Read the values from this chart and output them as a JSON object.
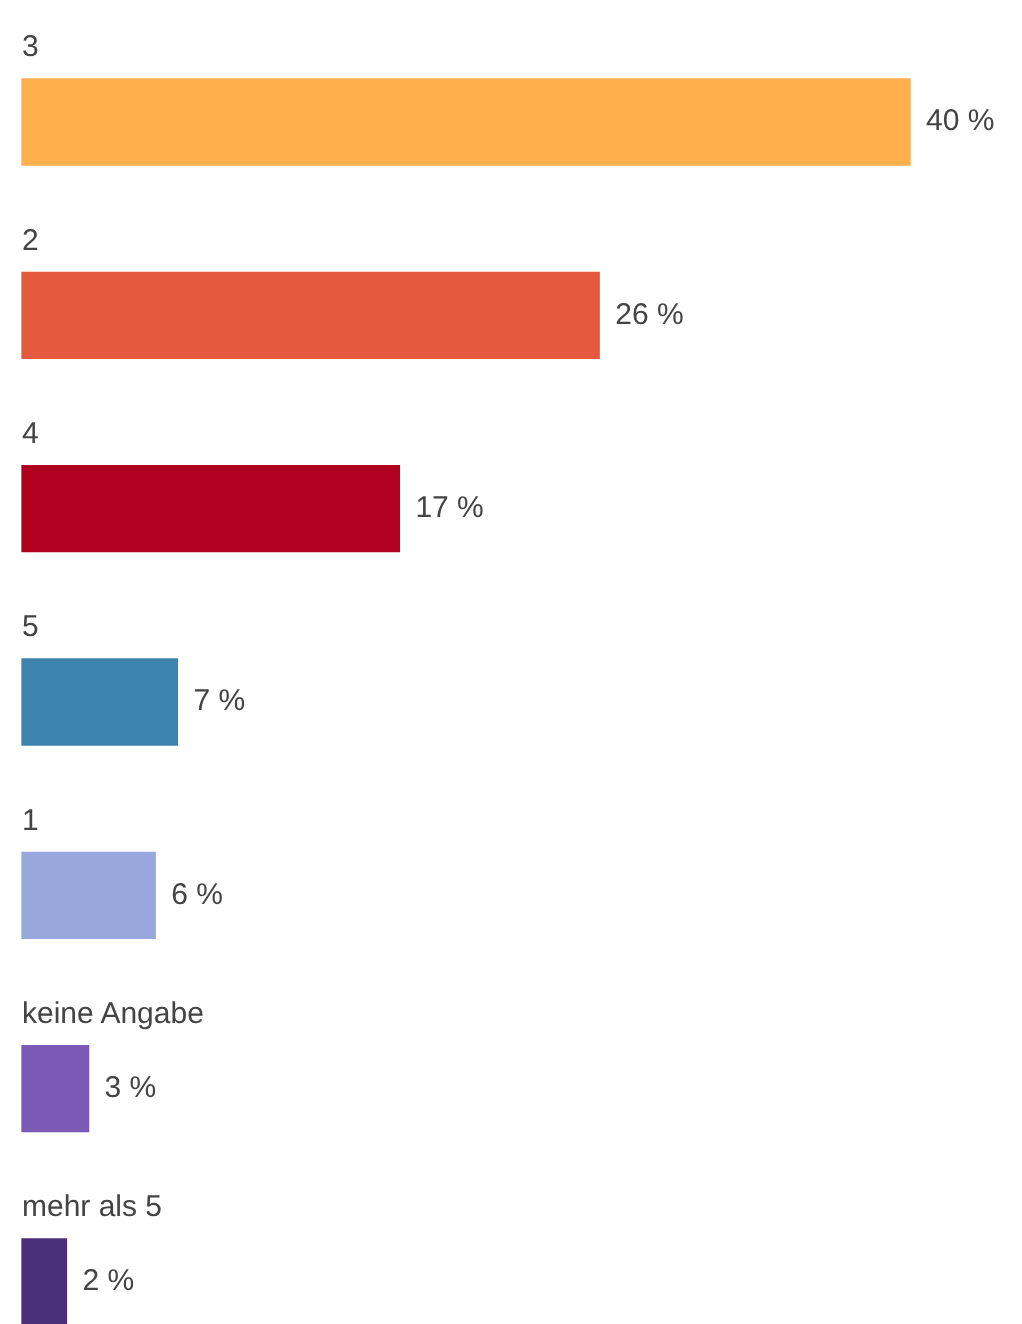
{
  "chart_data": {
    "type": "bar",
    "orientation": "horizontal",
    "categories": [
      "3",
      "2",
      "4",
      "5",
      "1",
      "keine Angabe",
      "mehr als 5"
    ],
    "values": [
      40,
      26,
      17,
      7,
      6,
      3,
      2
    ],
    "colors": [
      "#ffb04d",
      "#e55a3f",
      "#b00020",
      "#3d85b0",
      "#98a8dc",
      "#7a5ab4",
      "#4a2f7a"
    ],
    "value_labels": [
      "40 %",
      "26 %",
      "17 %",
      "7 %",
      "6 %",
      "3 %",
      "2 %"
    ]
  }
}
